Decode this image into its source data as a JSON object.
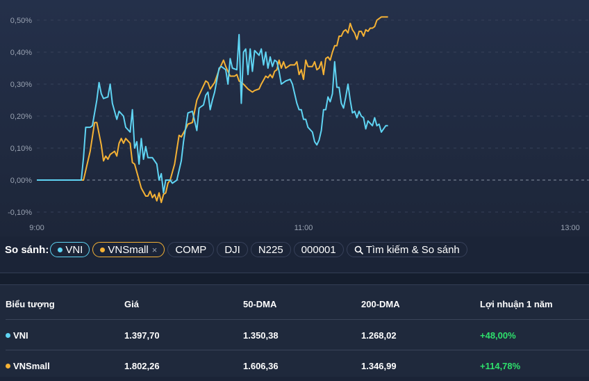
{
  "chart_data": {
    "type": "line",
    "title": "",
    "xlabel": "",
    "ylabel": "",
    "x_ticks": [
      "9:00",
      "11:00",
      "13:00"
    ],
    "y_ticks": [
      "0,50%",
      "0,40%",
      "0,30%",
      "0,20%",
      "0,10%",
      "0,00%",
      "-0,10%"
    ],
    "ylim": [
      -0.12,
      0.52
    ],
    "xlim": [
      "9:00",
      "13:00"
    ],
    "grid": "horizontal dashed",
    "zero_line": "dashed",
    "series": [
      {
        "name": "VNI",
        "color": "#5fd4f3",
        "points": [
          [
            "9:00",
            0.0
          ],
          [
            "9:20",
            0.0
          ],
          [
            "9:21",
            0.07
          ],
          [
            "9:22",
            0.165
          ],
          [
            "9:24",
            0.165
          ],
          [
            "9:25",
            0.17
          ],
          [
            "9:27",
            0.25
          ],
          [
            "9:28",
            0.305
          ],
          [
            "9:29",
            0.27
          ],
          [
            "9:30",
            0.255
          ],
          [
            "9:32",
            0.26
          ],
          [
            "9:33",
            0.3
          ],
          [
            "9:34",
            0.24
          ],
          [
            "9:36",
            0.19
          ],
          [
            "9:37",
            0.215
          ],
          [
            "9:39",
            0.2
          ],
          [
            "9:40",
            0.165
          ],
          [
            "9:42",
            0.15
          ],
          [
            "9:43",
            0.22
          ],
          [
            "9:44",
            0.1
          ],
          [
            "9:45",
            0.12
          ],
          [
            "9:46",
            0.05
          ],
          [
            "9:47",
            0.13
          ],
          [
            "9:48",
            0.065
          ],
          [
            "9:49",
            0.105
          ],
          [
            "9:50",
            0.07
          ],
          [
            "9:52",
            0.07
          ],
          [
            "9:54",
            0.05
          ],
          [
            "9:55",
            0.0
          ],
          [
            "9:56",
            0.02
          ],
          [
            "9:57",
            -0.04
          ],
          [
            "9:58",
            0.0
          ],
          [
            "10:00",
            0.0
          ],
          [
            "10:01",
            -0.01
          ],
          [
            "10:03",
            0.0
          ],
          [
            "10:05",
            0.06
          ],
          [
            "10:06",
            0.12
          ],
          [
            "10:08",
            0.21
          ],
          [
            "10:10",
            0.215
          ],
          [
            "10:12",
            0.155
          ],
          [
            "10:13",
            0.225
          ],
          [
            "10:15",
            0.235
          ],
          [
            "10:16",
            0.265
          ],
          [
            "10:17",
            0.275
          ],
          [
            "10:18",
            0.22
          ],
          [
            "10:19",
            0.25
          ],
          [
            "10:20",
            0.275
          ],
          [
            "10:22",
            0.35
          ],
          [
            "10:23",
            0.355
          ],
          [
            "10:25",
            0.345
          ],
          [
            "10:26",
            0.3
          ],
          [
            "10:27",
            0.38
          ],
          [
            "10:28",
            0.35
          ],
          [
            "10:30",
            0.345
          ],
          [
            "10:31",
            0.455
          ],
          [
            "10:32",
            0.24
          ],
          [
            "10:33",
            0.4
          ],
          [
            "10:34",
            0.41
          ],
          [
            "10:35",
            0.33
          ],
          [
            "10:36",
            0.41
          ],
          [
            "10:37",
            0.34
          ],
          [
            "10:38",
            0.405
          ],
          [
            "10:40",
            0.39
          ],
          [
            "10:41",
            0.41
          ],
          [
            "10:42",
            0.36
          ],
          [
            "10:43",
            0.4
          ],
          [
            "10:44",
            0.35
          ],
          [
            "10:45",
            0.385
          ],
          [
            "10:46",
            0.355
          ],
          [
            "10:47",
            0.375
          ],
          [
            "10:48",
            0.37
          ],
          [
            "10:49",
            0.34
          ],
          [
            "10:50",
            0.3
          ],
          [
            "10:52",
            0.31
          ],
          [
            "10:54",
            0.315
          ],
          [
            "10:55",
            0.3
          ],
          [
            "10:57",
            0.24
          ],
          [
            "10:58",
            0.22
          ],
          [
            "10:59",
            0.22
          ],
          [
            "11:00",
            0.19
          ],
          [
            "11:01",
            0.19
          ],
          [
            "11:02",
            0.165
          ],
          [
            "11:04",
            0.15
          ],
          [
            "11:05",
            0.12
          ],
          [
            "11:06",
            0.11
          ],
          [
            "11:07",
            0.125
          ],
          [
            "11:08",
            0.155
          ],
          [
            "11:09",
            0.22
          ],
          [
            "11:10",
            0.22
          ],
          [
            "11:11",
            0.26
          ],
          [
            "11:12",
            0.245
          ],
          [
            "11:13",
            0.27
          ],
          [
            "11:14",
            0.37
          ],
          [
            "11:15",
            0.29
          ],
          [
            "11:16",
            0.29
          ],
          [
            "11:17",
            0.24
          ],
          [
            "11:18",
            0.225
          ],
          [
            "11:19",
            0.26
          ],
          [
            "11:20",
            0.3
          ],
          [
            "11:21",
            0.25
          ],
          [
            "11:22",
            0.21
          ],
          [
            "11:23",
            0.215
          ],
          [
            "11:24",
            0.195
          ],
          [
            "11:25",
            0.215
          ],
          [
            "11:26",
            0.2
          ],
          [
            "11:27",
            0.195
          ],
          [
            "11:28",
            0.16
          ],
          [
            "11:29",
            0.185
          ],
          [
            "11:31",
            0.17
          ],
          [
            "11:32",
            0.195
          ],
          [
            "11:33",
            0.17
          ],
          [
            "11:34",
            0.175
          ],
          [
            "11:35",
            0.15
          ],
          [
            "11:37",
            0.17
          ],
          [
            "11:38",
            0.17
          ]
        ]
      },
      {
        "name": "VNSmall",
        "color": "#f5b235",
        "points": [
          [
            "9:00",
            0.0
          ],
          [
            "9:21",
            0.0
          ],
          [
            "9:23",
            0.06
          ],
          [
            "9:24",
            0.09
          ],
          [
            "9:26",
            0.18
          ],
          [
            "9:27",
            0.18
          ],
          [
            "9:29",
            0.11
          ],
          [
            "9:30",
            0.06
          ],
          [
            "9:31",
            0.075
          ],
          [
            "9:32",
            0.065
          ],
          [
            "9:33",
            0.08
          ],
          [
            "9:35",
            0.09
          ],
          [
            "9:36",
            0.075
          ],
          [
            "9:37",
            0.115
          ],
          [
            "9:38",
            0.13
          ],
          [
            "9:39",
            0.115
          ],
          [
            "9:40",
            0.13
          ],
          [
            "9:42",
            0.115
          ],
          [
            "9:43",
            0.055
          ],
          [
            "9:44",
            0.05
          ],
          [
            "9:46",
            0.0
          ],
          [
            "9:47",
            -0.025
          ],
          [
            "9:49",
            -0.05
          ],
          [
            "9:50",
            -0.05
          ],
          [
            "9:51",
            -0.035
          ],
          [
            "9:52",
            -0.055
          ],
          [
            "9:53",
            -0.045
          ],
          [
            "9:54",
            -0.065
          ],
          [
            "9:55",
            -0.04
          ],
          [
            "9:56",
            -0.07
          ],
          [
            "9:57",
            -0.045
          ],
          [
            "9:58",
            -0.04
          ],
          [
            "9:59",
            -0.01
          ],
          [
            "10:00",
            0.0
          ],
          [
            "10:02",
            0.05
          ],
          [
            "10:04",
            0.14
          ],
          [
            "10:05",
            0.135
          ],
          [
            "10:07",
            0.16
          ],
          [
            "10:08",
            0.175
          ],
          [
            "10:10",
            0.18
          ],
          [
            "10:12",
            0.25
          ],
          [
            "10:14",
            0.28
          ],
          [
            "10:16",
            0.31
          ],
          [
            "10:17",
            0.305
          ],
          [
            "10:18",
            0.285
          ],
          [
            "10:20",
            0.305
          ],
          [
            "10:22",
            0.345
          ],
          [
            "10:24",
            0.375
          ],
          [
            "10:25",
            0.355
          ],
          [
            "10:27",
            0.325
          ],
          [
            "10:29",
            0.325
          ],
          [
            "10:30",
            0.33
          ],
          [
            "10:31",
            0.31
          ],
          [
            "10:33",
            0.3
          ],
          [
            "10:35",
            0.285
          ],
          [
            "10:37",
            0.275
          ],
          [
            "10:38",
            0.28
          ],
          [
            "10:40",
            0.285
          ],
          [
            "10:41",
            0.3
          ],
          [
            "10:43",
            0.325
          ],
          [
            "10:44",
            0.32
          ],
          [
            "10:45",
            0.33
          ],
          [
            "10:46",
            0.32
          ],
          [
            "10:47",
            0.34
          ],
          [
            "10:48",
            0.345
          ],
          [
            "10:49",
            0.375
          ],
          [
            "10:50",
            0.35
          ],
          [
            "10:51",
            0.37
          ],
          [
            "10:52",
            0.35
          ],
          [
            "10:54",
            0.36
          ],
          [
            "10:56",
            0.36
          ],
          [
            "10:57",
            0.37
          ],
          [
            "10:58",
            0.33
          ],
          [
            "10:59",
            0.345
          ],
          [
            "11:00",
            0.315
          ],
          [
            "11:01",
            0.375
          ],
          [
            "11:02",
            0.355
          ],
          [
            "11:04",
            0.355
          ],
          [
            "11:05",
            0.37
          ],
          [
            "11:06",
            0.345
          ],
          [
            "11:07",
            0.35
          ],
          [
            "11:08",
            0.37
          ],
          [
            "11:09",
            0.33
          ],
          [
            "11:10",
            0.38
          ],
          [
            "11:11",
            0.385
          ],
          [
            "11:12",
            0.375
          ],
          [
            "11:13",
            0.4
          ],
          [
            "11:14",
            0.42
          ],
          [
            "11:15",
            0.42
          ],
          [
            "11:16",
            0.45
          ],
          [
            "11:17",
            0.45
          ],
          [
            "11:18",
            0.465
          ],
          [
            "11:19",
            0.47
          ],
          [
            "11:20",
            0.46
          ],
          [
            "11:21",
            0.49
          ],
          [
            "11:22",
            0.47
          ],
          [
            "11:23",
            0.46
          ],
          [
            "11:24",
            0.44
          ],
          [
            "11:25",
            0.465
          ],
          [
            "11:26",
            0.465
          ],
          [
            "11:27",
            0.45
          ],
          [
            "11:28",
            0.47
          ],
          [
            "11:29",
            0.465
          ],
          [
            "11:30",
            0.475
          ],
          [
            "11:31",
            0.475
          ],
          [
            "11:32",
            0.48
          ],
          [
            "11:33",
            0.5
          ],
          [
            "11:34",
            0.505
          ],
          [
            "11:35",
            0.51
          ],
          [
            "11:38",
            0.51
          ]
        ]
      }
    ]
  },
  "compare": {
    "label": "So sánh:",
    "chips": [
      {
        "label": "VNI",
        "color": "#5fd4f3",
        "active": true
      },
      {
        "label": "VNSmall",
        "color": "#f5b235",
        "active": true,
        "removable": true,
        "close": "×"
      },
      {
        "label": "COMP"
      },
      {
        "label": "DJI"
      },
      {
        "label": "N225"
      },
      {
        "label": "000001"
      }
    ],
    "search_label": "Tìm kiếm & So sánh"
  },
  "table": {
    "headers": [
      "Biểu tượng",
      "Giá",
      "50-DMA",
      "200-DMA",
      "Lợi nhuận 1 năm"
    ],
    "rows": [
      {
        "symbol": "VNI",
        "color": "#5fd4f3",
        "price": "1.397,70",
        "dma50": "1.350,38",
        "dma200": "1.268,02",
        "return_1y": "+48,00%"
      },
      {
        "symbol": "VNSmall",
        "color": "#f5b235",
        "price": "1.802,26",
        "dma50": "1.606,36",
        "dma200": "1.346,99",
        "return_1y": "+114,78%"
      }
    ]
  }
}
